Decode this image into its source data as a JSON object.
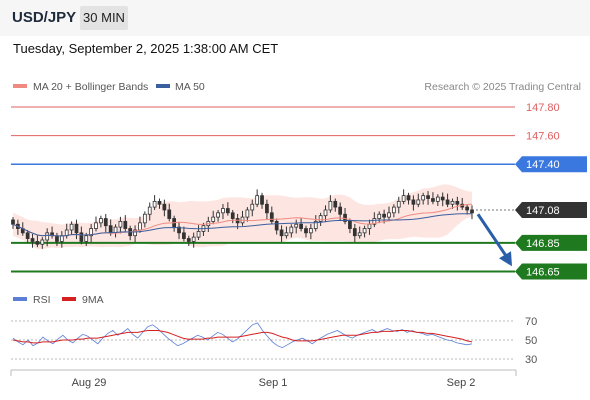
{
  "header": {
    "symbol": "USD/JPY",
    "timeframe": "30 MIN",
    "datetime": "Tuesday, September 2, 2025 1:38:00 AM CET"
  },
  "legend": {
    "ma20": "MA 20 + Bollinger Bands",
    "ma50": "MA 50",
    "ma20_color": "#f08a80",
    "ma50_color": "#3a5f9e"
  },
  "credit": "Research © 2025 Trading Central",
  "levels": [
    {
      "value": 147.8,
      "label": "147.80",
      "style": "thin-red"
    },
    {
      "value": 147.6,
      "label": "147.60",
      "style": "thin-red"
    },
    {
      "value": 147.4,
      "label": "147.40",
      "style": "blue-badge"
    },
    {
      "value": 147.08,
      "label": "147.08",
      "style": "price-badge"
    },
    {
      "value": 146.85,
      "label": "146.85",
      "style": "green-badge"
    },
    {
      "value": 146.65,
      "label": "146.65",
      "style": "green-badge"
    }
  ],
  "colors": {
    "red_level": "#e06060",
    "blue_level": "#3a78e0",
    "green_level": "#1f7a1f",
    "price_badge": "#333333",
    "candle": "#333333",
    "band_fill": "#fde0dc",
    "arrow": "#2a5ea8"
  },
  "forecast_arrow": {
    "from": 147.05,
    "to": 146.7
  },
  "rsi_legend": {
    "rsi": "RSI",
    "ma": "9MA",
    "rsi_color": "#5b7fd6",
    "ma_color": "#d62020"
  },
  "rsi_ticks": [
    "70",
    "50",
    "30"
  ],
  "x_labels": [
    "Aug 29",
    "Sep 1",
    "Sep 2"
  ],
  "chart_data": {
    "type": "candlestick",
    "ylim": [
      146.6,
      147.85
    ],
    "current_price": 147.08,
    "closes": [
      146.98,
      146.95,
      146.92,
      146.88,
      146.86,
      146.84,
      146.87,
      146.92,
      146.9,
      146.86,
      146.9,
      146.94,
      146.98,
      146.92,
      146.86,
      146.9,
      146.95,
      146.99,
      147.02,
      146.97,
      146.92,
      146.96,
      147.0,
      146.95,
      146.9,
      146.94,
      146.99,
      147.05,
      147.1,
      147.14,
      147.12,
      147.08,
      147.02,
      146.96,
      146.92,
      146.88,
      146.86,
      146.89,
      146.93,
      146.97,
      147.0,
      147.03,
      147.06,
      147.09,
      147.06,
      147.02,
      146.99,
      147.03,
      147.08,
      147.12,
      147.18,
      147.12,
      147.06,
      147.0,
      146.94,
      146.9,
      146.92,
      146.96,
      146.98,
      146.95,
      146.92,
      146.95,
      147.0,
      147.04,
      147.08,
      147.14,
      147.1,
      147.05,
      147.0,
      146.95,
      146.9,
      146.92,
      146.95,
      146.98,
      147.02,
      147.05,
      147.03,
      147.06,
      147.1,
      147.14,
      147.18,
      147.15,
      147.12,
      147.15,
      147.18,
      147.16,
      147.14,
      147.17,
      147.15,
      147.12,
      147.14,
      147.12,
      147.1,
      147.08,
      147.06
    ],
    "rsi": [
      52,
      48,
      45,
      50,
      44,
      47,
      53,
      49,
      46,
      51,
      55,
      50,
      47,
      52,
      56,
      54,
      50,
      46,
      52,
      57,
      60,
      55,
      58,
      62,
      56,
      52,
      58,
      64,
      66,
      62,
      57,
      52,
      48,
      44,
      46,
      49,
      52,
      55,
      53,
      50,
      54,
      58,
      56,
      52,
      48,
      51,
      56,
      61,
      66,
      68,
      60,
      54,
      48,
      44,
      42,
      45,
      48,
      50,
      52,
      49,
      46,
      50,
      53,
      56,
      58,
      60,
      57,
      54,
      52,
      55,
      57,
      59,
      61,
      58,
      60,
      62,
      60,
      59,
      61,
      58,
      60,
      58,
      57,
      55,
      56,
      54,
      52,
      50,
      49,
      47,
      46,
      45,
      46
    ],
    "rsi_ma": [
      50,
      49,
      48,
      48,
      47,
      47,
      48,
      48,
      48,
      49,
      50,
      50,
      50,
      51,
      51,
      52,
      52,
      52,
      53,
      54,
      55,
      56,
      57,
      58,
      58,
      58,
      59,
      60,
      60,
      60,
      59,
      58,
      56,
      54,
      52,
      51,
      51,
      51,
      51,
      52,
      52,
      53,
      53,
      53,
      53,
      53,
      54,
      55,
      56,
      57,
      58,
      58,
      57,
      55,
      53,
      52,
      50,
      49,
      49,
      49,
      49,
      50,
      51,
      52,
      53,
      54,
      55,
      55,
      55,
      55,
      56,
      57,
      58,
      58,
      59,
      59,
      59,
      60,
      60,
      60,
      59,
      58,
      58,
      57,
      57,
      56,
      55,
      54,
      53,
      52,
      51,
      49,
      48
    ]
  }
}
